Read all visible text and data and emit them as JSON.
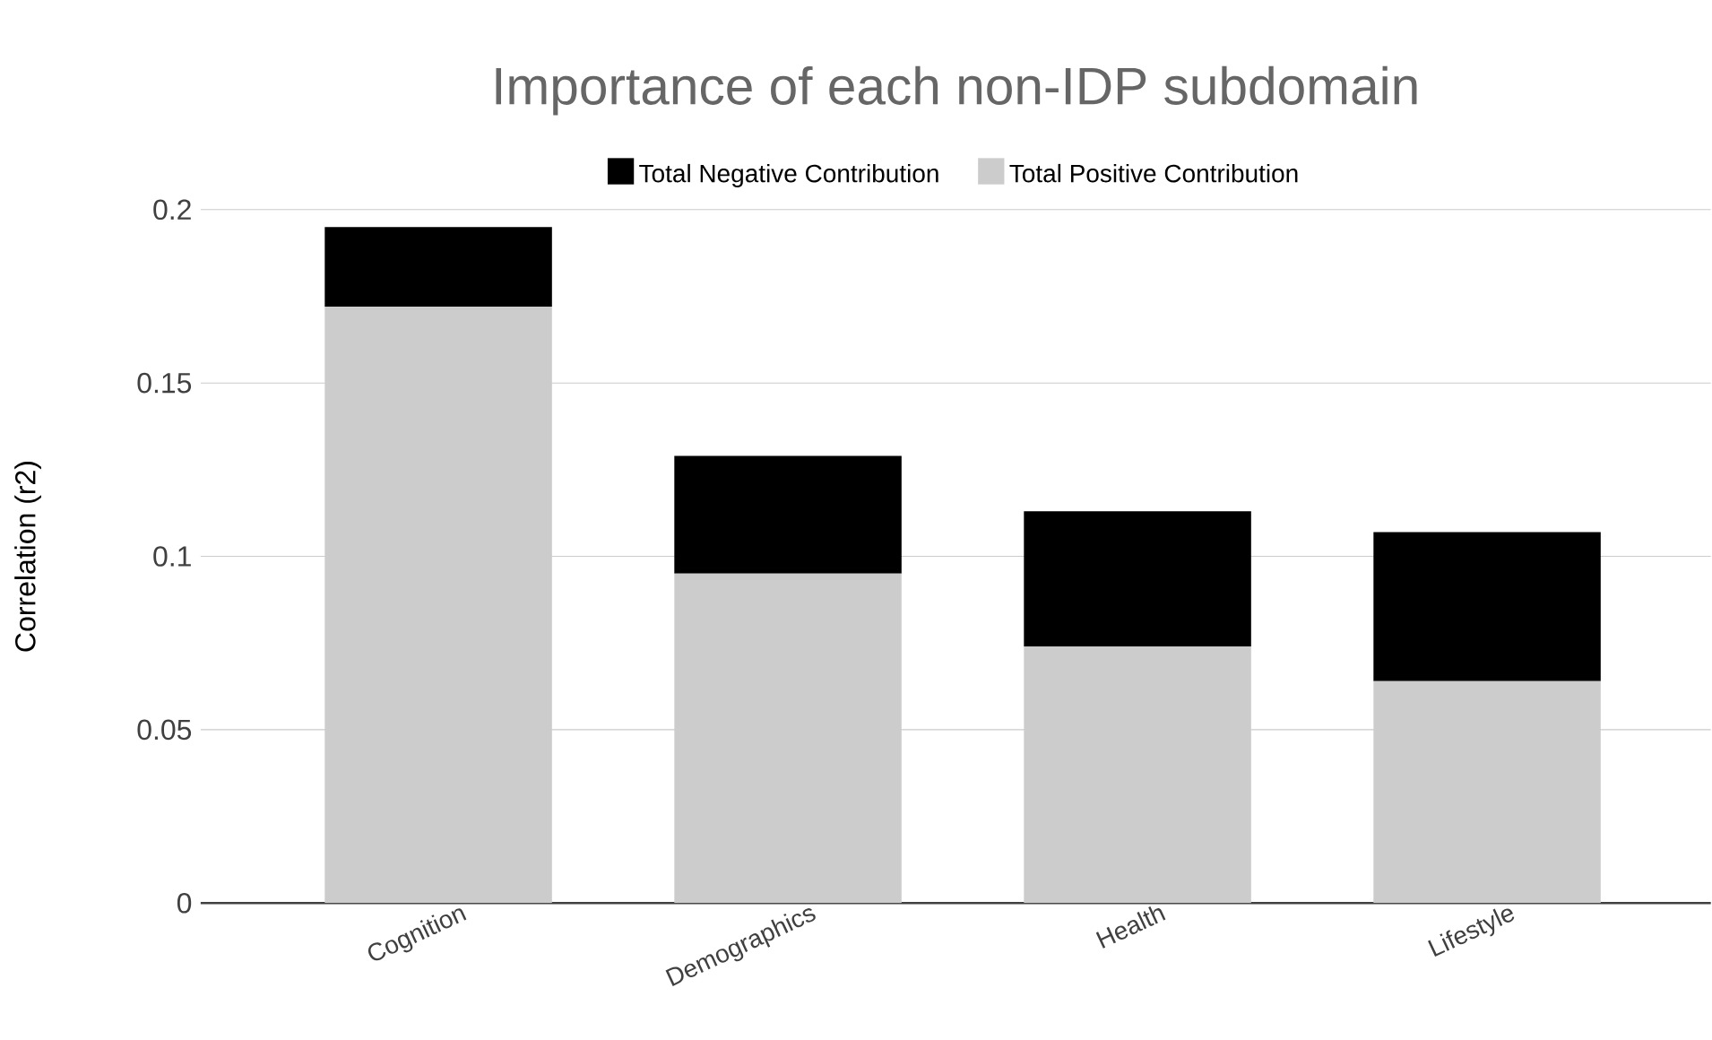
{
  "chart_data": {
    "type": "bar",
    "title": "Importance of each non-IDP subdomain",
    "ylabel": "Correlation (r2)",
    "categories": [
      "Cognition",
      "Demographics",
      "Health",
      "Lifestyle"
    ],
    "stacked": true,
    "series": [
      {
        "name": "Total Positive Contribution",
        "color": "#cccccc",
        "values": [
          0.172,
          0.095,
          0.074,
          0.064
        ]
      },
      {
        "name": "Total Negative Contribution",
        "color": "#000000",
        "values": [
          0.023,
          0.034,
          0.039,
          0.043
        ]
      }
    ],
    "ylim": [
      0,
      0.2
    ],
    "yticks": [
      0,
      0.05,
      0.1,
      0.15,
      0.2
    ],
    "grid": "y",
    "legend": "top"
  }
}
